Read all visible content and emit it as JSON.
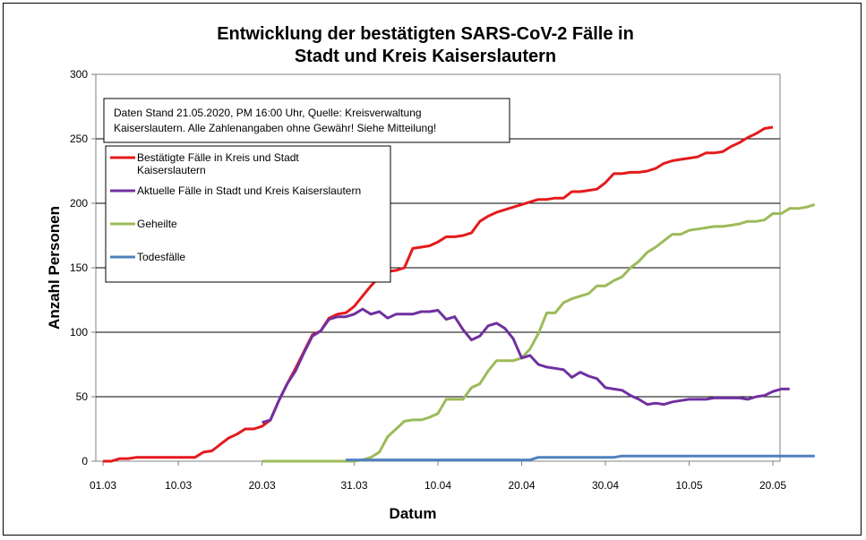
{
  "chart_data": {
    "type": "line",
    "title_lines": [
      "Entwicklung der bestätigten SARS-CoV-2 Fälle in",
      "Stadt und Kreis Kaiserslautern"
    ],
    "xlabel": "Datum",
    "ylabel": "Anzahl Personen",
    "ylim": [
      0,
      300
    ],
    "yticks": [
      0,
      50,
      100,
      150,
      200,
      250,
      300
    ],
    "grid": true,
    "x_start": "2020-03-01",
    "x_end": "2020-05-20",
    "xtick_labels": [
      "01.03",
      "10.03",
      "20.03",
      "31.03",
      "10.04",
      "20.04",
      "30.04",
      "10.05",
      "20.05"
    ],
    "xtick_dates": [
      "2020-03-01",
      "2020-03-10",
      "2020-03-20",
      "2020-03-31",
      "2020-04-10",
      "2020-04-20",
      "2020-04-30",
      "2020-05-10",
      "2020-05-20"
    ],
    "note_lines": [
      "Daten Stand 21.05.2020, PM 16:00 Uhr, Quelle: Kreisverwaltung",
      "Kaiserslautern. Alle Zahlenangaben ohne Gewähr! Siehe Mitteilung!"
    ],
    "series": [
      {
        "name_lines": [
          "Bestätigte Fälle in Kreis und Stadt",
          "Kaiserslautern"
        ],
        "color": "#e41a1c",
        "points": [
          [
            "2020-03-01",
            0
          ],
          [
            "2020-03-02",
            0
          ],
          [
            "2020-03-03",
            2
          ],
          [
            "2020-03-04",
            2
          ],
          [
            "2020-03-05",
            3
          ],
          [
            "2020-03-06",
            3
          ],
          [
            "2020-03-07",
            3
          ],
          [
            "2020-03-08",
            3
          ],
          [
            "2020-03-09",
            3
          ],
          [
            "2020-03-10",
            3
          ],
          [
            "2020-03-11",
            3
          ],
          [
            "2020-03-12",
            3
          ],
          [
            "2020-03-13",
            7
          ],
          [
            "2020-03-14",
            8
          ],
          [
            "2020-03-15",
            13
          ],
          [
            "2020-03-16",
            18
          ],
          [
            "2020-03-17",
            21
          ],
          [
            "2020-03-18",
            25
          ],
          [
            "2020-03-19",
            25
          ],
          [
            "2020-03-20",
            27
          ],
          [
            "2020-03-21",
            32
          ],
          [
            "2020-03-22",
            47
          ],
          [
            "2020-03-23",
            60
          ],
          [
            "2020-03-24",
            72
          ],
          [
            "2020-03-25",
            85
          ],
          [
            "2020-03-26",
            98
          ],
          [
            "2020-03-27",
            101
          ],
          [
            "2020-03-28",
            111
          ],
          [
            "2020-03-29",
            114
          ],
          [
            "2020-03-30",
            115
          ],
          [
            "2020-03-31",
            120
          ],
          [
            "2020-04-01",
            128
          ],
          [
            "2020-04-02",
            136
          ],
          [
            "2020-04-03",
            143
          ],
          [
            "2020-04-04",
            147
          ],
          [
            "2020-04-05",
            148
          ],
          [
            "2020-04-06",
            150
          ],
          [
            "2020-04-07",
            165
          ],
          [
            "2020-04-08",
            166
          ],
          [
            "2020-04-09",
            167
          ],
          [
            "2020-04-10",
            170
          ],
          [
            "2020-04-11",
            174
          ],
          [
            "2020-04-12",
            174
          ],
          [
            "2020-04-13",
            175
          ],
          [
            "2020-04-14",
            177
          ],
          [
            "2020-04-15",
            186
          ],
          [
            "2020-04-16",
            190
          ],
          [
            "2020-04-17",
            193
          ],
          [
            "2020-04-18",
            195
          ],
          [
            "2020-04-19",
            197
          ],
          [
            "2020-04-20",
            199
          ],
          [
            "2020-04-21",
            201
          ],
          [
            "2020-04-22",
            203
          ],
          [
            "2020-04-23",
            203
          ],
          [
            "2020-04-24",
            204
          ],
          [
            "2020-04-25",
            204
          ],
          [
            "2020-04-26",
            209
          ],
          [
            "2020-04-27",
            209
          ],
          [
            "2020-04-28",
            210
          ],
          [
            "2020-04-29",
            211
          ],
          [
            "2020-04-30",
            216
          ],
          [
            "2020-05-01",
            223
          ],
          [
            "2020-05-02",
            223
          ],
          [
            "2020-05-03",
            224
          ],
          [
            "2020-05-04",
            224
          ],
          [
            "2020-05-05",
            225
          ],
          [
            "2020-05-06",
            227
          ],
          [
            "2020-05-07",
            231
          ],
          [
            "2020-05-08",
            233
          ],
          [
            "2020-05-09",
            234
          ],
          [
            "2020-05-10",
            235
          ],
          [
            "2020-05-11",
            236
          ],
          [
            "2020-05-12",
            239
          ],
          [
            "2020-05-13",
            239
          ],
          [
            "2020-05-14",
            240
          ],
          [
            "2020-05-15",
            244
          ],
          [
            "2020-05-16",
            247
          ],
          [
            "2020-05-17",
            251
          ],
          [
            "2020-05-18",
            254
          ],
          [
            "2020-05-19",
            258
          ],
          [
            "2020-05-20",
            259
          ]
        ]
      },
      {
        "name_lines": [
          "Aktuelle Fälle in Stadt und Kreis Kaiserslautern"
        ],
        "color": "#7030a0",
        "points": [
          [
            "2020-03-20",
            30
          ],
          [
            "2020-03-21",
            32
          ],
          [
            "2020-03-22",
            47
          ],
          [
            "2020-03-23",
            60
          ],
          [
            "2020-03-24",
            70
          ],
          [
            "2020-03-25",
            84
          ],
          [
            "2020-03-26",
            97
          ],
          [
            "2020-03-27",
            101
          ],
          [
            "2020-03-28",
            110
          ],
          [
            "2020-03-29",
            112
          ],
          [
            "2020-03-30",
            112
          ],
          [
            "2020-03-31",
            114
          ],
          [
            "2020-04-01",
            118
          ],
          [
            "2020-04-02",
            114
          ],
          [
            "2020-04-03",
            116
          ],
          [
            "2020-04-04",
            111
          ],
          [
            "2020-04-05",
            114
          ],
          [
            "2020-04-06",
            114
          ],
          [
            "2020-04-07",
            114
          ],
          [
            "2020-04-08",
            116
          ],
          [
            "2020-04-09",
            116
          ],
          [
            "2020-04-10",
            117
          ],
          [
            "2020-04-11",
            110
          ],
          [
            "2020-04-12",
            112
          ],
          [
            "2020-04-13",
            102
          ],
          [
            "2020-04-14",
            94
          ],
          [
            "2020-04-15",
            97
          ],
          [
            "2020-04-16",
            105
          ],
          [
            "2020-04-17",
            107
          ],
          [
            "2020-04-18",
            103
          ],
          [
            "2020-04-19",
            95
          ],
          [
            "2020-04-20",
            80
          ],
          [
            "2020-04-21",
            82
          ],
          [
            "2020-04-22",
            75
          ],
          [
            "2020-04-23",
            73
          ],
          [
            "2020-04-24",
            72
          ],
          [
            "2020-04-25",
            71
          ],
          [
            "2020-04-26",
            65
          ],
          [
            "2020-04-27",
            69
          ],
          [
            "2020-04-28",
            66
          ],
          [
            "2020-04-29",
            64
          ],
          [
            "2020-04-30",
            57
          ],
          [
            "2020-05-01",
            56
          ],
          [
            "2020-05-02",
            55
          ],
          [
            "2020-05-03",
            51
          ],
          [
            "2020-05-04",
            48
          ],
          [
            "2020-05-05",
            44
          ],
          [
            "2020-05-06",
            45
          ],
          [
            "2020-05-07",
            44
          ],
          [
            "2020-05-08",
            46
          ],
          [
            "2020-05-09",
            47
          ],
          [
            "2020-05-10",
            48
          ],
          [
            "2020-05-11",
            48
          ],
          [
            "2020-05-12",
            48
          ],
          [
            "2020-05-13",
            49
          ],
          [
            "2020-05-14",
            49
          ],
          [
            "2020-05-15",
            49
          ],
          [
            "2020-05-16",
            49
          ],
          [
            "2020-05-17",
            48
          ],
          [
            "2020-05-18",
            50
          ],
          [
            "2020-05-19",
            51
          ],
          [
            "2020-05-20",
            54
          ],
          [
            "2020-05-21",
            56
          ],
          [
            "2020-05-22",
            56
          ]
        ]
      },
      {
        "name_lines": [
          "Geheilte"
        ],
        "color": "#9bbb59",
        "points": [
          [
            "2020-03-20",
            0
          ],
          [
            "2020-03-30",
            0
          ],
          [
            "2020-03-31",
            0
          ],
          [
            "2020-04-01",
            1
          ],
          [
            "2020-04-02",
            3
          ],
          [
            "2020-04-03",
            7
          ],
          [
            "2020-04-04",
            19
          ],
          [
            "2020-04-05",
            25
          ],
          [
            "2020-04-06",
            31
          ],
          [
            "2020-04-07",
            32
          ],
          [
            "2020-04-08",
            32
          ],
          [
            "2020-04-09",
            34
          ],
          [
            "2020-04-10",
            37
          ],
          [
            "2020-04-11",
            48
          ],
          [
            "2020-04-12",
            48
          ],
          [
            "2020-04-13",
            48
          ],
          [
            "2020-04-14",
            57
          ],
          [
            "2020-04-15",
            60
          ],
          [
            "2020-04-16",
            70
          ],
          [
            "2020-04-17",
            78
          ],
          [
            "2020-04-18",
            78
          ],
          [
            "2020-04-19",
            78
          ],
          [
            "2020-04-20",
            80
          ],
          [
            "2020-04-21",
            87
          ],
          [
            "2020-04-22",
            99
          ],
          [
            "2020-04-23",
            115
          ],
          [
            "2020-04-24",
            115
          ],
          [
            "2020-04-25",
            123
          ],
          [
            "2020-04-26",
            126
          ],
          [
            "2020-04-27",
            128
          ],
          [
            "2020-04-28",
            130
          ],
          [
            "2020-04-29",
            136
          ],
          [
            "2020-04-30",
            136
          ],
          [
            "2020-05-01",
            140
          ],
          [
            "2020-05-02",
            143
          ],
          [
            "2020-05-03",
            150
          ],
          [
            "2020-05-04",
            155
          ],
          [
            "2020-05-05",
            162
          ],
          [
            "2020-05-06",
            166
          ],
          [
            "2020-05-07",
            171
          ],
          [
            "2020-05-08",
            176
          ],
          [
            "2020-05-09",
            176
          ],
          [
            "2020-05-10",
            179
          ],
          [
            "2020-05-11",
            180
          ],
          [
            "2020-05-12",
            181
          ],
          [
            "2020-05-13",
            182
          ],
          [
            "2020-05-14",
            182
          ],
          [
            "2020-05-15",
            183
          ],
          [
            "2020-05-16",
            184
          ],
          [
            "2020-05-17",
            186
          ],
          [
            "2020-05-18",
            186
          ],
          [
            "2020-05-19",
            187
          ],
          [
            "2020-05-20",
            192
          ],
          [
            "2020-05-21",
            192
          ],
          [
            "2020-05-22",
            196
          ],
          [
            "2020-05-23",
            196
          ],
          [
            "2020-05-24",
            197
          ],
          [
            "2020-05-25",
            199
          ]
        ]
      },
      {
        "name_lines": [
          "Todesfälle"
        ],
        "color": "#4f81bd",
        "points": [
          [
            "2020-03-30",
            1
          ],
          [
            "2020-04-10",
            1
          ],
          [
            "2020-04-20",
            1
          ],
          [
            "2020-04-21",
            1
          ],
          [
            "2020-04-22",
            3
          ],
          [
            "2020-04-30",
            3
          ],
          [
            "2020-05-01",
            3
          ],
          [
            "2020-05-02",
            4
          ],
          [
            "2020-05-25",
            4
          ]
        ]
      }
    ]
  }
}
